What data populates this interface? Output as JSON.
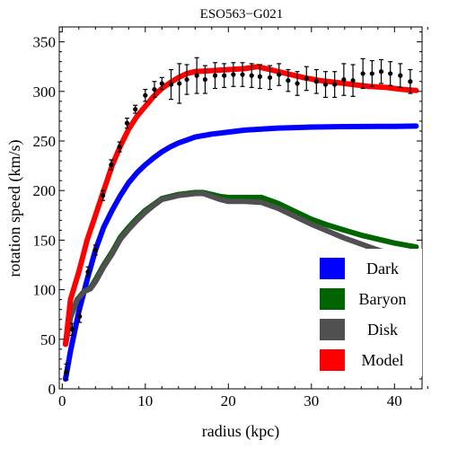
{
  "chart_data": {
    "type": "line",
    "title": "ESO563−G021",
    "xlabel": "radius (kpc)",
    "ylabel": "rotation speed (km/s)",
    "xlim": [
      0,
      44
    ],
    "ylim": [
      0,
      365
    ],
    "xticks": [
      {
        "value": 0,
        "label": "0"
      },
      {
        "value": 10,
        "label": "10"
      },
      {
        "value": 20,
        "label": "20"
      },
      {
        "value": 30,
        "label": "30"
      },
      {
        "value": 40,
        "label": "40"
      }
    ],
    "yticks": [
      {
        "value": 0,
        "label": "0"
      },
      {
        "value": 50,
        "label": "50"
      },
      {
        "value": 100,
        "label": "100"
      },
      {
        "value": 150,
        "label": "150"
      },
      {
        "value": 200,
        "label": "200"
      },
      {
        "value": 250,
        "label": "250"
      },
      {
        "value": 300,
        "label": "300"
      },
      {
        "value": 350,
        "label": "350"
      }
    ],
    "grid": false,
    "legend_position": "bottom-right",
    "series": [
      {
        "name": "Dark",
        "color": "#0000ff",
        "points": [
          [
            0.4,
            10
          ],
          [
            1,
            38
          ],
          [
            2,
            78
          ],
          [
            3,
            110
          ],
          [
            4,
            140
          ],
          [
            5,
            163
          ],
          [
            6,
            180
          ],
          [
            7,
            195
          ],
          [
            8,
            208
          ],
          [
            9,
            218
          ],
          [
            10,
            226
          ],
          [
            11,
            233
          ],
          [
            12,
            239
          ],
          [
            13,
            244
          ],
          [
            14,
            248
          ],
          [
            15,
            251
          ],
          [
            16,
            254
          ],
          [
            18,
            257
          ],
          [
            20,
            259
          ],
          [
            22,
            261
          ],
          [
            24,
            262
          ],
          [
            26,
            263
          ],
          [
            28,
            263.5
          ],
          [
            30,
            264
          ],
          [
            32,
            264.3
          ],
          [
            34,
            264.5
          ],
          [
            36,
            264.6
          ],
          [
            38,
            264.7
          ],
          [
            40,
            264.8
          ],
          [
            42.6,
            265
          ]
        ]
      },
      {
        "name": "Baryon",
        "color": "#006400",
        "points": [
          [
            0.4,
            45
          ],
          [
            1,
            72
          ],
          [
            1.8,
            90
          ],
          [
            2.6,
            98
          ],
          [
            3.4,
            102
          ],
          [
            4,
            110
          ],
          [
            5,
            125
          ],
          [
            6,
            138
          ],
          [
            7,
            153
          ],
          [
            8,
            163
          ],
          [
            9,
            172
          ],
          [
            10,
            180
          ],
          [
            11,
            186
          ],
          [
            12,
            192
          ],
          [
            13,
            194
          ],
          [
            14,
            196
          ],
          [
            15,
            197
          ],
          [
            16,
            198
          ],
          [
            17,
            198
          ],
          [
            18,
            196
          ],
          [
            19,
            194
          ],
          [
            20,
            193
          ],
          [
            22,
            193
          ],
          [
            24,
            193
          ],
          [
            26,
            187
          ],
          [
            28,
            179
          ],
          [
            30,
            171
          ],
          [
            32,
            165
          ],
          [
            34,
            160
          ],
          [
            36,
            155
          ],
          [
            38,
            151
          ],
          [
            40,
            147
          ],
          [
            42.6,
            143
          ]
        ]
      },
      {
        "name": "Disk",
        "color": "#505050",
        "points": [
          [
            0.4,
            45
          ],
          [
            1,
            72
          ],
          [
            1.8,
            90
          ],
          [
            2.6,
            98
          ],
          [
            3.4,
            101
          ],
          [
            4,
            108
          ],
          [
            5,
            123
          ],
          [
            6,
            136
          ],
          [
            7,
            151
          ],
          [
            8,
            161
          ],
          [
            9,
            170
          ],
          [
            10,
            178
          ],
          [
            11,
            185
          ],
          [
            12,
            191
          ],
          [
            13,
            193
          ],
          [
            14,
            195
          ],
          [
            15,
            196
          ],
          [
            16,
            197
          ],
          [
            17,
            197
          ],
          [
            18,
            194
          ],
          [
            19,
            191
          ],
          [
            20,
            189
          ],
          [
            22,
            189
          ],
          [
            24,
            188
          ],
          [
            26,
            182
          ],
          [
            28,
            174
          ],
          [
            30,
            166
          ],
          [
            32,
            159
          ],
          [
            34,
            152
          ],
          [
            36,
            146
          ],
          [
            38,
            140
          ],
          [
            40,
            135
          ],
          [
            42.6,
            129
          ]
        ]
      },
      {
        "name": "Model",
        "color": "#ff0000",
        "points": [
          [
            0.4,
            45
          ],
          [
            1,
            90
          ],
          [
            2,
            118
          ],
          [
            3,
            150
          ],
          [
            4,
            175
          ],
          [
            5,
            200
          ],
          [
            6,
            225
          ],
          [
            7,
            245
          ],
          [
            8,
            262
          ],
          [
            9,
            275
          ],
          [
            10,
            285
          ],
          [
            11,
            295
          ],
          [
            12,
            303
          ],
          [
            13,
            309
          ],
          [
            14,
            314
          ],
          [
            15,
            318
          ],
          [
            16,
            320
          ],
          [
            18,
            321
          ],
          [
            20,
            322
          ],
          [
            22,
            323
          ],
          [
            23.5,
            325
          ],
          [
            25,
            322
          ],
          [
            27,
            318
          ],
          [
            29,
            314
          ],
          [
            31,
            311
          ],
          [
            33,
            309
          ],
          [
            35,
            307
          ],
          [
            37,
            305
          ],
          [
            39,
            304
          ],
          [
            41,
            302
          ],
          [
            42.6,
            301
          ]
        ]
      }
    ],
    "observed": {
      "points": [
        {
          "x": 0.5,
          "y": 17,
          "err": 8
        },
        {
          "x": 1.2,
          "y": 60,
          "err": 6
        },
        {
          "x": 2.1,
          "y": 73,
          "err": 6
        },
        {
          "x": 3.1,
          "y": 118,
          "err": 5
        },
        {
          "x": 4.0,
          "y": 140,
          "err": 5
        },
        {
          "x": 4.9,
          "y": 195,
          "err": 5
        },
        {
          "x": 5.9,
          "y": 226,
          "err": 5
        },
        {
          "x": 6.9,
          "y": 244,
          "err": 5
        },
        {
          "x": 7.8,
          "y": 268,
          "err": 5
        },
        {
          "x": 8.8,
          "y": 282,
          "err": 4
        },
        {
          "x": 10.0,
          "y": 296,
          "err": 6
        },
        {
          "x": 11.1,
          "y": 302,
          "err": 8
        },
        {
          "x": 12.0,
          "y": 308,
          "err": 6
        },
        {
          "x": 13.1,
          "y": 307,
          "err": 15
        },
        {
          "x": 14.1,
          "y": 308,
          "err": 20
        },
        {
          "x": 15.0,
          "y": 312,
          "err": 15
        },
        {
          "x": 16.2,
          "y": 316,
          "err": 18
        },
        {
          "x": 17.2,
          "y": 312,
          "err": 14
        },
        {
          "x": 18.4,
          "y": 316,
          "err": 13
        },
        {
          "x": 19.5,
          "y": 316,
          "err": 12
        },
        {
          "x": 20.6,
          "y": 317,
          "err": 12
        },
        {
          "x": 21.7,
          "y": 317,
          "err": 12
        },
        {
          "x": 22.8,
          "y": 316,
          "err": 12
        },
        {
          "x": 23.8,
          "y": 315,
          "err": 12
        },
        {
          "x": 25.0,
          "y": 314,
          "err": 12
        },
        {
          "x": 26.1,
          "y": 317,
          "err": 11
        },
        {
          "x": 27.2,
          "y": 311,
          "err": 11
        },
        {
          "x": 28.3,
          "y": 308,
          "err": 12
        },
        {
          "x": 29.4,
          "y": 313,
          "err": 12
        },
        {
          "x": 30.6,
          "y": 310,
          "err": 12
        },
        {
          "x": 31.7,
          "y": 307,
          "err": 13
        },
        {
          "x": 32.8,
          "y": 307,
          "err": 13
        },
        {
          "x": 33.9,
          "y": 312,
          "err": 16
        },
        {
          "x": 35.0,
          "y": 311,
          "err": 16
        },
        {
          "x": 36.2,
          "y": 318,
          "err": 15
        },
        {
          "x": 37.3,
          "y": 318,
          "err": 13
        },
        {
          "x": 38.4,
          "y": 320,
          "err": 12
        },
        {
          "x": 39.5,
          "y": 318,
          "err": 12
        },
        {
          "x": 40.7,
          "y": 316,
          "err": 12
        },
        {
          "x": 41.9,
          "y": 310,
          "err": 12
        }
      ]
    }
  }
}
